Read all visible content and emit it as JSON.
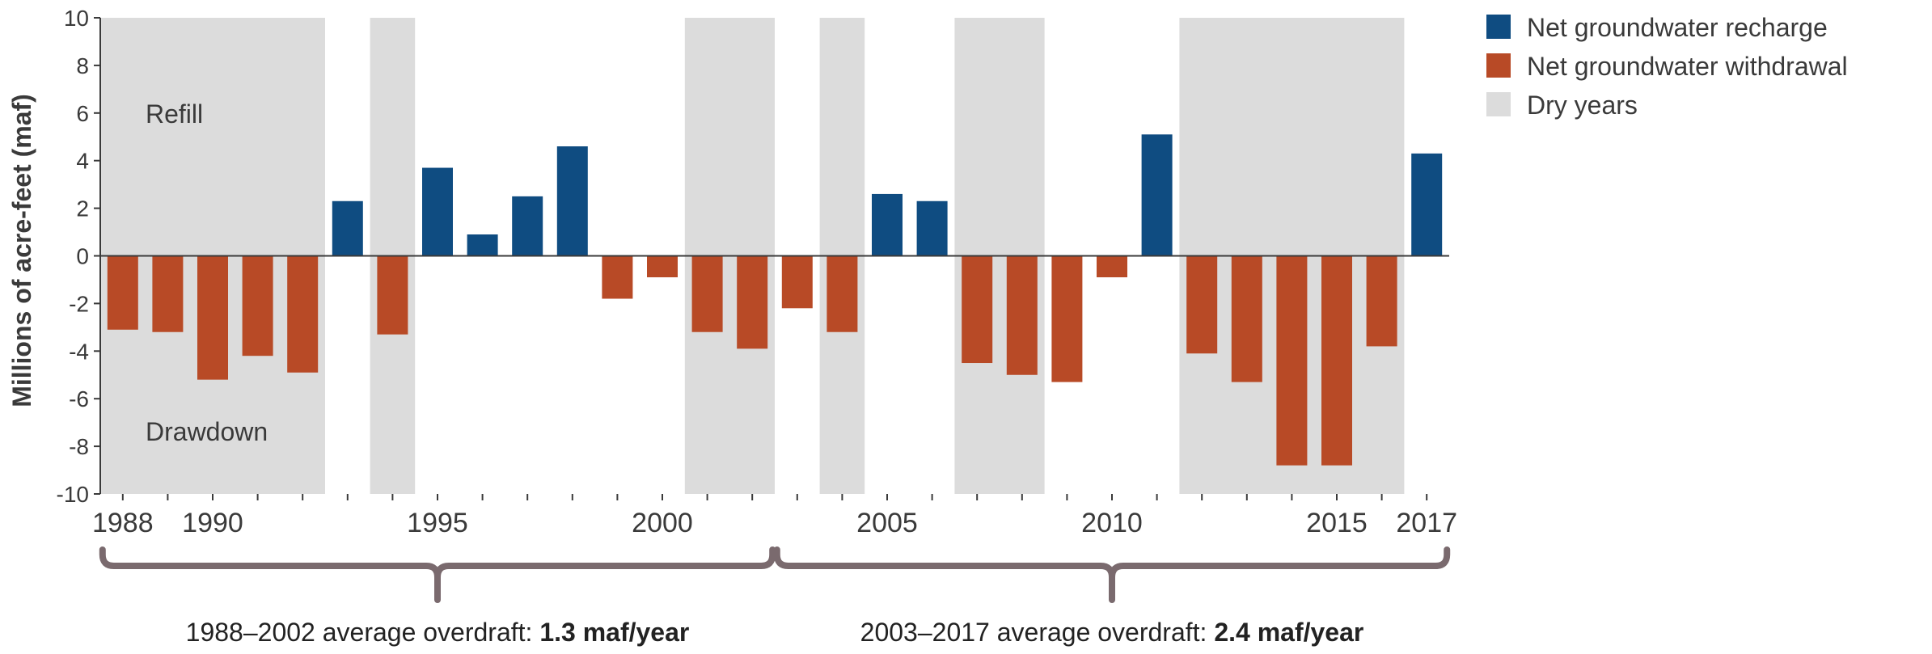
{
  "chart_data": {
    "type": "bar",
    "title": "",
    "ylabel": "Millions of acre-feet (maf)",
    "ylim": [
      -10,
      10
    ],
    "yticks": [
      10,
      8,
      6,
      4,
      2,
      0,
      -2,
      -4,
      -6,
      -8,
      -10
    ],
    "xtick_labels": [
      1988,
      1990,
      1995,
      2000,
      2005,
      2010,
      2015,
      2017
    ],
    "years": [
      1988,
      1989,
      1990,
      1991,
      1992,
      1993,
      1994,
      1995,
      1996,
      1997,
      1998,
      1999,
      2000,
      2001,
      2002,
      2003,
      2004,
      2005,
      2006,
      2007,
      2008,
      2009,
      2010,
      2011,
      2012,
      2013,
      2014,
      2015,
      2016,
      2017
    ],
    "values": [
      -3.1,
      -3.2,
      -5.2,
      -4.2,
      -4.9,
      2.3,
      -3.3,
      3.7,
      0.9,
      2.5,
      4.6,
      -1.8,
      -0.9,
      -3.2,
      -3.9,
      -2.2,
      -3.2,
      2.6,
      2.3,
      -4.5,
      -5.0,
      -5.3,
      -0.9,
      5.1,
      -4.1,
      -5.3,
      -8.8,
      -8.8,
      -3.8,
      4.3
    ],
    "dry_periods": [
      [
        1988,
        1992
      ],
      [
        1994,
        1994
      ],
      [
        2001,
        2002
      ],
      [
        2004,
        2004
      ],
      [
        2007,
        2008
      ],
      [
        2012,
        2016
      ]
    ],
    "colors": {
      "recharge": "#0f4c81",
      "withdrawal": "#b84a26",
      "dry": "#dcdcdc",
      "brace": "#7a6a6e",
      "axis": "#3a3a3a"
    },
    "legend": {
      "placement": "top-right",
      "items": [
        {
          "key": "recharge",
          "label": "Net groundwater recharge"
        },
        {
          "key": "withdrawal",
          "label": "Net groundwater withdrawal"
        },
        {
          "key": "dry",
          "label": "Dry years"
        }
      ]
    },
    "annotations": {
      "top": "Refill",
      "bottom": "Drawdown"
    },
    "periods": [
      {
        "start": 1988,
        "end": 2002,
        "text": "1988–2002 average overdraft: ",
        "value": "1.3 maf/year"
      },
      {
        "start": 2003,
        "end": 2017,
        "text": "2003–2017 average overdraft: ",
        "value": "2.4 maf/year"
      }
    ]
  }
}
